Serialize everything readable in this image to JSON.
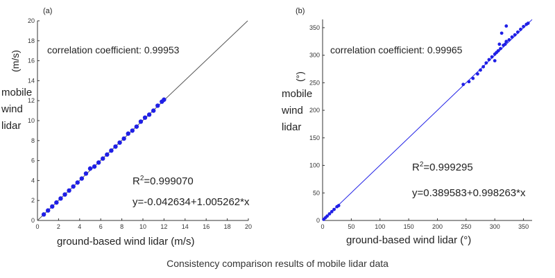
{
  "caption": "Consistency comparison results of mobile lidar data",
  "chart_data": [
    {
      "type": "scatter",
      "panel_label": "(a)",
      "xlabel": "ground-based wind lidar",
      "xunit": "(m/s)",
      "ylabel": [
        "mobile",
        "wind",
        "lidar"
      ],
      "yunit": "(m/s)",
      "xlim": [
        0,
        20
      ],
      "ylim": [
        0,
        20
      ],
      "xticks": [
        "0",
        "2",
        "4",
        "6",
        "8",
        "10",
        "12",
        "14",
        "16",
        "18",
        "20"
      ],
      "yticks": [
        "0",
        "2",
        "4",
        "6",
        "8",
        "10",
        "12",
        "14",
        "16",
        "18",
        "20"
      ],
      "correlation_text": "correlation coefficient: 0.99953",
      "r2_prefix": "R",
      "r2_sup": "2",
      "r2_value": "=0.999070",
      "equation": "y=-0.042634+1.005262*x",
      "fit": {
        "intercept": -0.042634,
        "slope": 1.005262
      },
      "point_color": "#1f1fe6",
      "line_color": "#555555",
      "points": {
        "x": [
          0.6,
          1.0,
          1.4,
          1.8,
          2.2,
          2.6,
          3.0,
          3.4,
          3.8,
          4.2,
          4.6,
          5.0,
          5.4,
          5.8,
          6.2,
          6.6,
          7.0,
          7.4,
          7.8,
          8.2,
          8.6,
          9.0,
          9.4,
          9.8,
          10.2,
          10.6,
          11.0,
          11.4,
          11.8,
          12.0
        ],
        "y": [
          0.6,
          1.0,
          1.4,
          1.8,
          2.2,
          2.6,
          3.0,
          3.4,
          3.8,
          4.2,
          4.7,
          5.2,
          5.4,
          5.8,
          6.2,
          6.6,
          7.0,
          7.4,
          7.8,
          8.2,
          8.7,
          9.0,
          9.4,
          9.9,
          10.3,
          10.6,
          11.0,
          11.5,
          11.9,
          12.1
        ]
      }
    },
    {
      "type": "scatter",
      "panel_label": "(b)",
      "xlabel": "ground-based wind lidar",
      "xunit": "(°)",
      "ylabel": [
        "mobile",
        "wind",
        "lidar"
      ],
      "yunit": "(°)",
      "xlim": [
        0,
        365
      ],
      "ylim": [
        0,
        365
      ],
      "xticks": [
        "0",
        "50",
        "100",
        "150",
        "200",
        "250",
        "300",
        "350"
      ],
      "yticks": [
        "0",
        "50",
        "100",
        "150",
        "200",
        "250",
        "300",
        "350"
      ],
      "correlation_text": "correlation coefficient: 0.99965",
      "r2_prefix": "R",
      "r2_sup": "2",
      "r2_value": "=0.999295",
      "equation": "y=0.389583+0.998263*x",
      "fit": {
        "intercept": 0.389583,
        "slope": 0.998263
      },
      "point_color": "#1f1fe6",
      "line_color": "#1f1fe6",
      "points": {
        "x": [
          2,
          5,
          8,
          12,
          16,
          20,
          25,
          28,
          245,
          255,
          262,
          270,
          275,
          280,
          285,
          290,
          295,
          300,
          303,
          306,
          310,
          315,
          318,
          320,
          325,
          330,
          335,
          340,
          345,
          350,
          355,
          358,
          320,
          312,
          308,
          300
        ],
        "y": [
          2,
          5,
          8,
          12,
          16,
          20,
          25,
          27,
          247,
          252,
          258,
          266,
          273,
          279,
          286,
          292,
          297,
          302,
          305,
          308,
          312,
          318,
          320,
          325,
          328,
          333,
          337,
          342,
          347,
          352,
          356,
          358,
          353,
          340,
          320,
          290
        ]
      }
    }
  ]
}
